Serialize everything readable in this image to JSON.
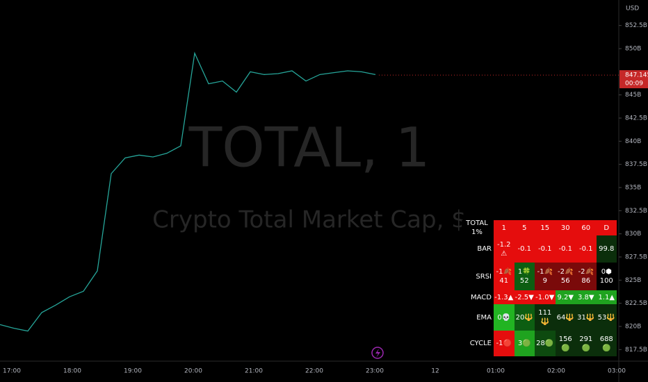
{
  "price_axis": {
    "currency": "USD",
    "ylim": [
      816.25,
      854.5
    ],
    "yticks": [
      {
        "value": 852.5,
        "label": "852.5B"
      },
      {
        "value": 850,
        "label": "850B"
      },
      {
        "value": 845,
        "label": "845B"
      },
      {
        "value": 842.5,
        "label": "842.5B"
      },
      {
        "value": 840,
        "label": "840B"
      },
      {
        "value": 837.5,
        "label": "837.5B"
      },
      {
        "value": 835,
        "label": "835B"
      },
      {
        "value": 832.5,
        "label": "832.5B"
      },
      {
        "value": 830,
        "label": "830B"
      },
      {
        "value": 827.5,
        "label": "827.5B"
      },
      {
        "value": 825,
        "label": "825B"
      },
      {
        "value": 822.5,
        "label": "822.5B"
      },
      {
        "value": 820,
        "label": "820B"
      },
      {
        "value": 817.5,
        "label": "817.5B"
      }
    ],
    "last_price": {
      "value": 847.145,
      "label": "847.145B"
    },
    "countdown": "00:09"
  },
  "time_axis": [
    "17:00",
    "18:00",
    "19:00",
    "20:00",
    "21:00",
    "22:00",
    "23:00",
    "12",
    "01:00",
    "02:00",
    "03:00"
  ],
  "watermark": {
    "symbol": "TOTAL, 1",
    "description": "Crypto Total Market Cap, $"
  },
  "price_series": {
    "color": "#26a69a",
    "values": [
      820.2,
      819.8,
      819.5,
      821.5,
      822.3,
      823.2,
      823.8,
      826,
      836.5,
      838.2,
      838.5,
      838.3,
      838.7,
      839.5,
      849.5,
      846.2,
      846.5,
      845.3,
      847.5,
      847.2,
      847.3,
      847.6,
      846.5,
      847.2,
      847.4,
      847.6,
      847.5,
      847.2
    ]
  },
  "table": {
    "header": {
      "label": "TOTAL 1%",
      "cells": [
        "1",
        "5",
        "15",
        "30",
        "60",
        "D"
      ],
      "color": "#e50d0d"
    },
    "rows": [
      {
        "label": "BAR",
        "cells": [
          {
            "text": "-1.2 ⚠",
            "color": "#e50d0d"
          },
          {
            "text": "-0.1",
            "color": "#e50d0d"
          },
          {
            "text": "-0.1",
            "color": "#e50d0d"
          },
          {
            "text": "-0.1",
            "color": "#e50d0d"
          },
          {
            "text": "-0.1",
            "color": "#e50d0d"
          },
          {
            "text": "99.8",
            "color": "#0b2e0b"
          }
        ]
      },
      {
        "label": "SRSI",
        "cells": [
          {
            "text": "-1🍂 41",
            "color": "#e50d0d"
          },
          {
            "text": "1🍀 52",
            "color": "#0d5e12"
          },
          {
            "text": "-1🍂 9",
            "color": "#7a0a0a"
          },
          {
            "text": "-2🍂 56",
            "color": "#7a0a0a"
          },
          {
            "text": "-2🍂 86",
            "color": "#7a0a0a"
          },
          {
            "text": "0⬢ 100",
            "color": "#000000"
          }
        ]
      },
      {
        "label": "MACD",
        "cells": [
          {
            "text": "-1.3▲",
            "color": "#e50d0d"
          },
          {
            "text": "-2.5▼",
            "color": "#e50d0d"
          },
          {
            "text": "-1.0▼",
            "color": "#e50d0d"
          },
          {
            "text": "9.2▼",
            "color": "#1fa31f"
          },
          {
            "text": "3.8▼",
            "color": "#1fa31f"
          },
          {
            "text": "1.1▲",
            "color": "#1fa31f"
          }
        ]
      },
      {
        "label": "EMA",
        "cells": [
          {
            "text": "0💀",
            "color": "#22b422"
          },
          {
            "text": "20🔱",
            "color": "#0d5e12"
          },
          {
            "text": "111🔱",
            "color": "#0b2e0b"
          },
          {
            "text": "64🔱",
            "color": "#0b2e0b"
          },
          {
            "text": "31🔱",
            "color": "#0b2e0b"
          },
          {
            "text": "53🔱",
            "color": "#0b2e0b"
          }
        ]
      },
      {
        "label": "CYCLE",
        "cells": [
          {
            "text": "-1🔴",
            "color": "#e50d0d"
          },
          {
            "text": "3🟢",
            "color": "#1fa31f"
          },
          {
            "text": "28🟢",
            "color": "#0d4a0f"
          },
          {
            "text": "156🟢",
            "color": "#0b2e0b"
          },
          {
            "text": "291🟢",
            "color": "#0b2e0b"
          },
          {
            "text": "688🟢",
            "color": "#0b2e0b"
          }
        ]
      }
    ]
  }
}
